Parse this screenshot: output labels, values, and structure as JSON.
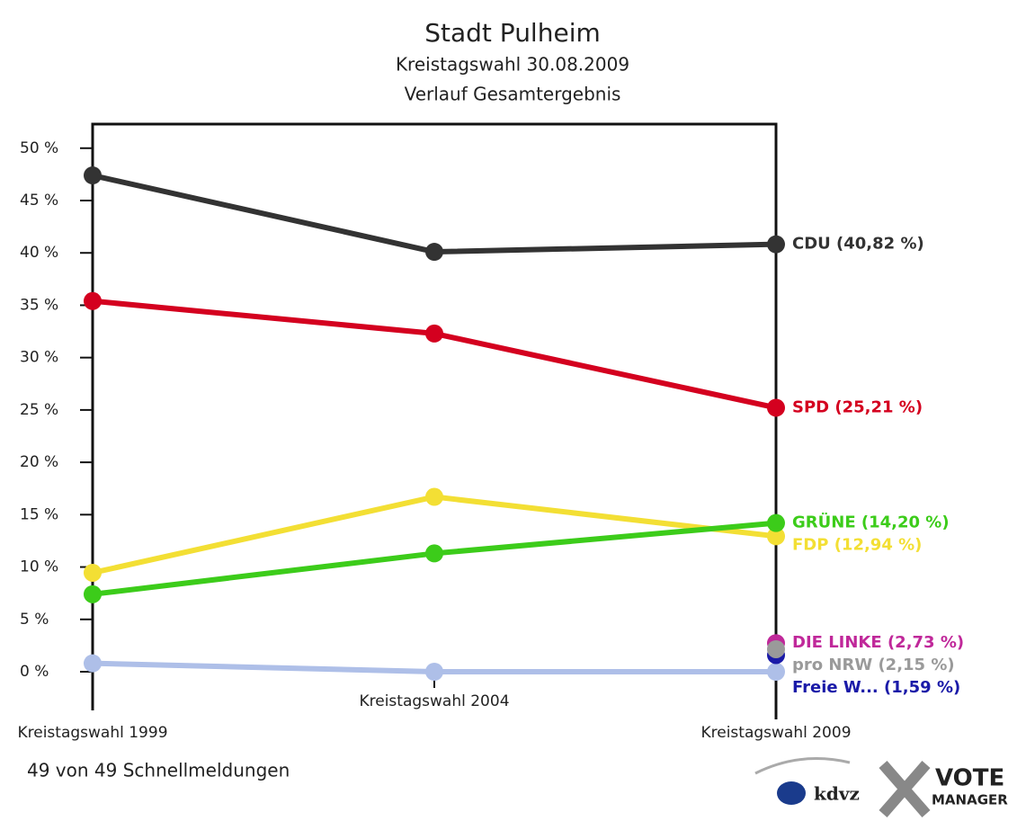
{
  "chart_data": {
    "type": "line",
    "title": "Stadt Pulheim",
    "subtitle": "Kreistagswahl 30.08.2009",
    "subtitle2": "Verlauf Gesamtergebnis",
    "categories": [
      "Kreistagswahl 1999",
      "Kreistagswahl 2004",
      "Kreistagswahl 2009"
    ],
    "ylim": [
      0,
      52.3
    ],
    "yticks": [
      {
        "value": 0,
        "label": "0 %"
      },
      {
        "value": 5,
        "label": "5 %"
      },
      {
        "value": 10,
        "label": "10 %"
      },
      {
        "value": 15,
        "label": "15 %"
      },
      {
        "value": 20,
        "label": "20 %"
      },
      {
        "value": 25,
        "label": "25 %"
      },
      {
        "value": 30,
        "label": "30 %"
      },
      {
        "value": 35,
        "label": "35 %"
      },
      {
        "value": 40,
        "label": "40 %"
      },
      {
        "value": 45,
        "label": "45 %"
      },
      {
        "value": 50,
        "label": "50 %"
      }
    ],
    "series": [
      {
        "color": "#aebfe8",
        "values": [
          0.8,
          0,
          0
        ]
      },
      {
        "color": "#333333",
        "values": [
          47.4,
          40.1,
          40.82
        ],
        "value_labels": [
          null,
          null,
          "CDU (40,82 %)"
        ]
      },
      {
        "color": "#d4001f",
        "values": [
          35.4,
          32.3,
          25.21
        ],
        "value_labels": [
          null,
          null,
          "SPD (25,21 %)"
        ]
      },
      {
        "color": "#f3df34",
        "values": [
          9.45,
          16.7,
          12.94
        ],
        "value_labels": [
          null,
          null,
          "FDP (12,94 %)"
        ]
      },
      {
        "color": "#3ccc1a",
        "values": [
          7.4,
          11.3,
          14.2
        ],
        "value_labels": [
          null,
          null,
          "GRÜNE (14,20 %)"
        ]
      },
      {
        "color": "#c0289a",
        "values": [
          null,
          null,
          2.73
        ],
        "value_labels": [
          null,
          null,
          "DIE LINKE (2,73 %)"
        ]
      },
      {
        "color": "#1a1aa8",
        "values": [
          null,
          null,
          1.59
        ],
        "value_labels": [
          null,
          null,
          "Freie W... (1,59 %)"
        ]
      },
      {
        "color": "#9a9a9a",
        "values": [
          null,
          null,
          2.15
        ],
        "value_labels": [
          null,
          null,
          "pro NRW (2,15 %)"
        ]
      }
    ],
    "annotation": "49 von 49 Schnellmeldungen",
    "logo_text": [
      "kdvz",
      "VOTE",
      "MANAGER"
    ]
  }
}
